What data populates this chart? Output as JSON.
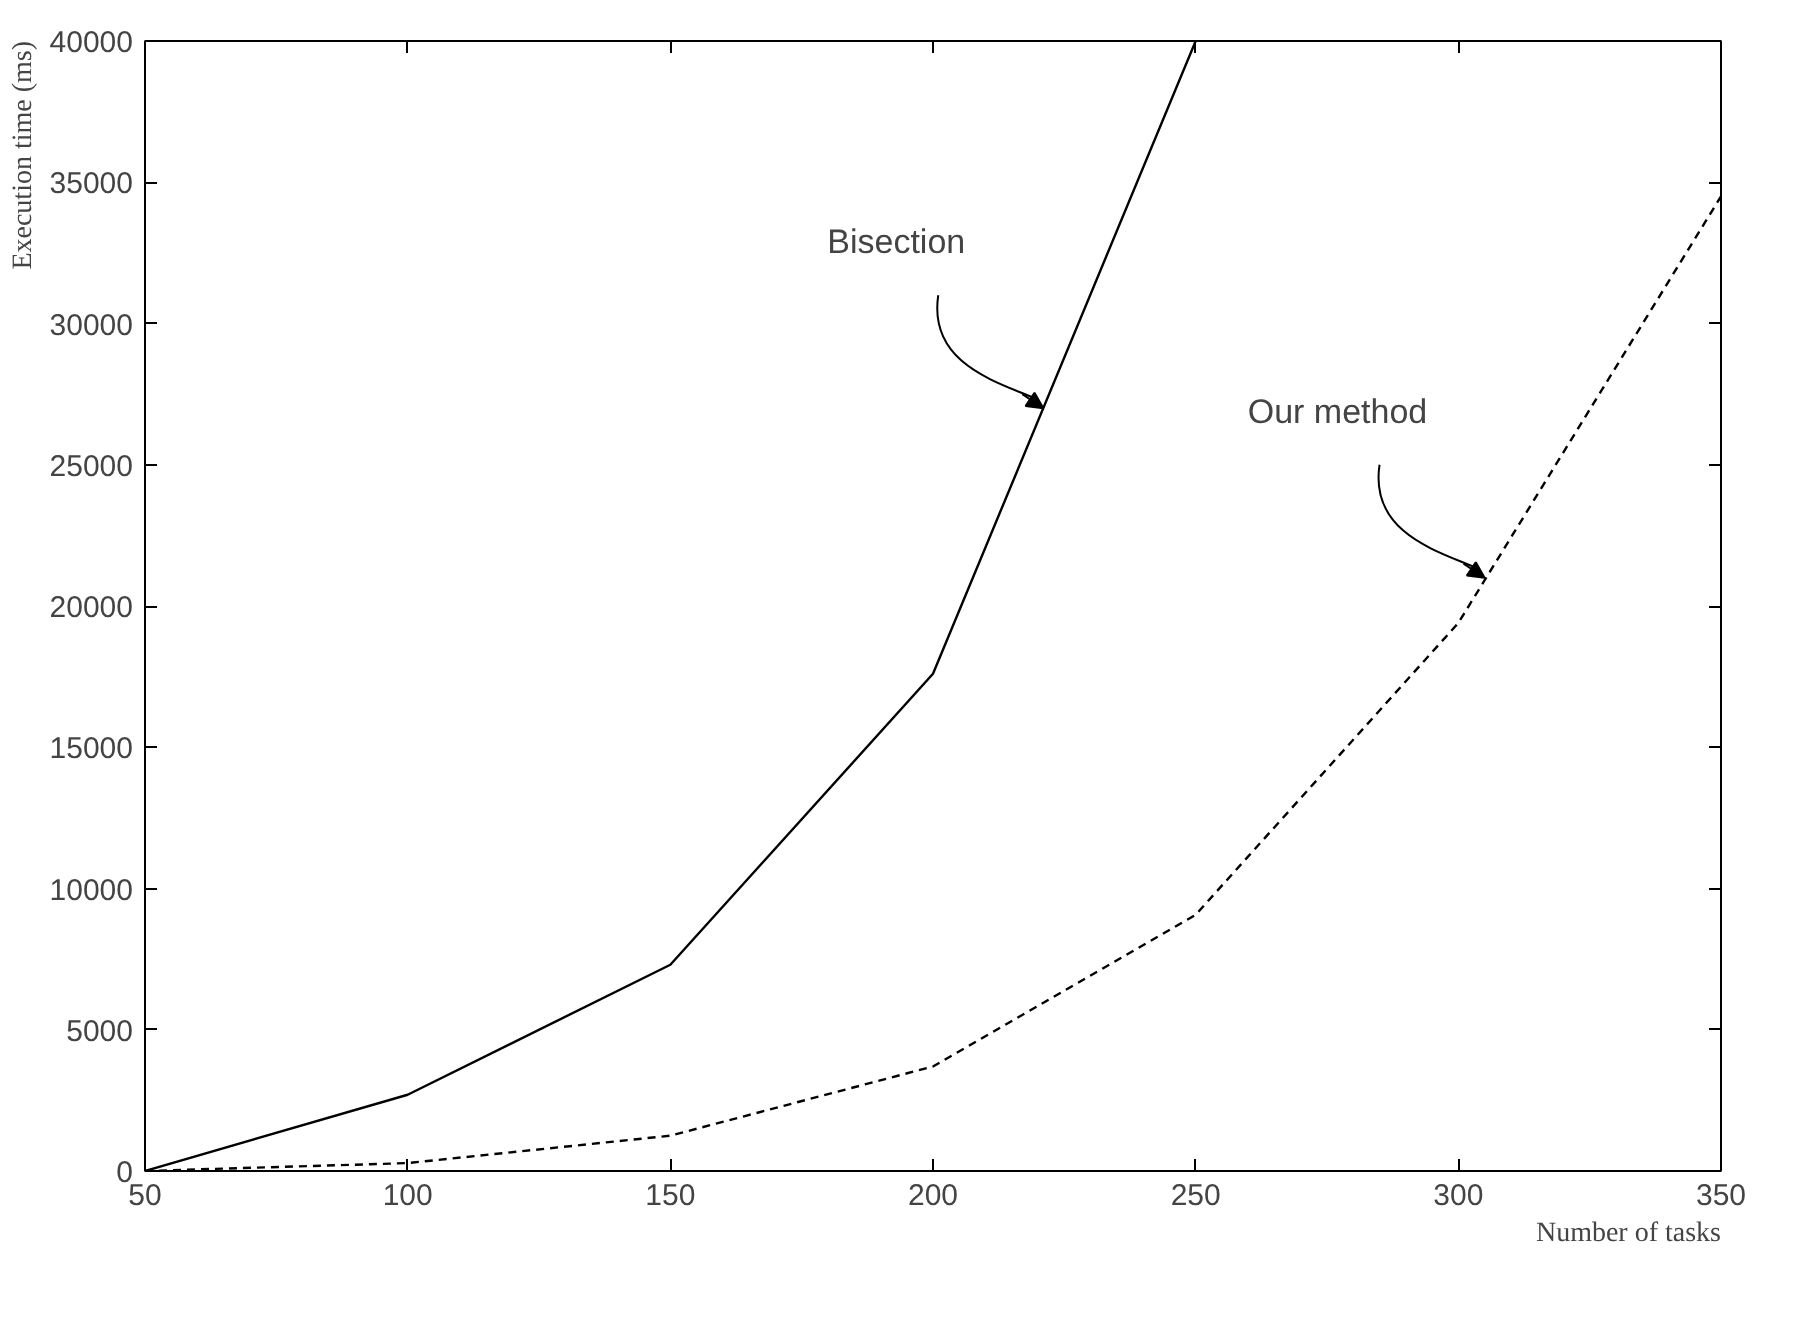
{
  "chart_data": {
    "type": "line",
    "xlabel": "Number of tasks",
    "ylabel": "Execution time (ms)",
    "x": [
      50,
      100,
      150,
      200,
      250,
      300,
      350
    ],
    "xlim": [
      50,
      350
    ],
    "ylim": [
      0,
      40000
    ],
    "xticks": [
      50,
      100,
      150,
      200,
      250,
      300,
      350
    ],
    "yticks": [
      0,
      5000,
      10000,
      15000,
      20000,
      25000,
      30000,
      35000,
      40000
    ],
    "grid": false,
    "marker": "none",
    "series": [
      {
        "color": "#000000",
        "line_style": "solid",
        "x": [
          50,
          100,
          150,
          200,
          250
        ],
        "values": [
          0,
          2700,
          7300,
          17600,
          40000
        ]
      },
      {
        "color": "#000000",
        "line_style": "dashed",
        "values": [
          0,
          280,
          1250,
          3700,
          9070,
          19400,
          34500
        ]
      }
    ],
    "annotations": [
      {
        "text": "Bisection",
        "x": 221,
        "y": 27000
      },
      {
        "text": "Our method",
        "x": 305,
        "y": 21000
      }
    ]
  }
}
